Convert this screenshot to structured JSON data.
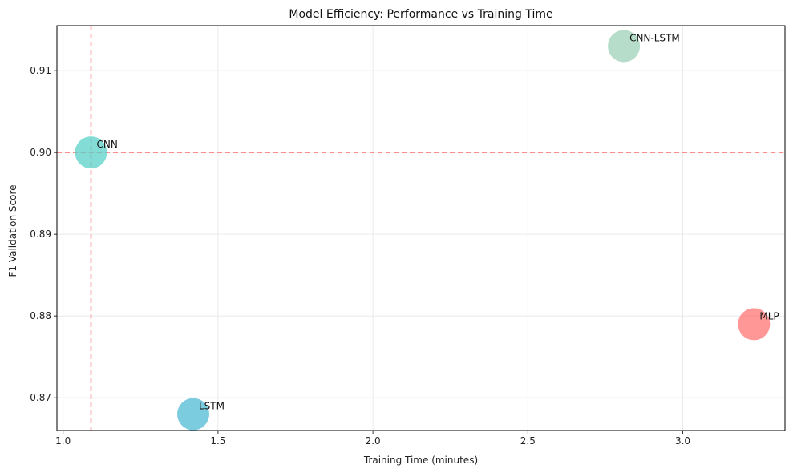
{
  "chart_data": {
    "type": "scatter",
    "title": "Model Efficiency: Performance vs Training Time",
    "xlabel": "Training Time (minutes)",
    "ylabel": "F1 Validation Score",
    "xlim": [
      0.98,
      3.33
    ],
    "ylim": [
      0.866,
      0.9155
    ],
    "xticks": [
      1.0,
      1.5,
      2.0,
      2.5,
      3.0
    ],
    "xtick_labels": [
      "1.0",
      "1.5",
      "2.0",
      "2.5",
      "3.0"
    ],
    "yticks": [
      0.87,
      0.88,
      0.89,
      0.9,
      0.91
    ],
    "ytick_labels": [
      "0.87",
      "0.88",
      "0.89",
      "0.90",
      "0.91"
    ],
    "grid": true,
    "points": [
      {
        "label": "CNN",
        "x": 1.09,
        "y": 0.9,
        "color": "#4ecdc4"
      },
      {
        "label": "LSTM",
        "x": 1.42,
        "y": 0.868,
        "color": "#45b7d1"
      },
      {
        "label": "CNN-LSTM",
        "x": 2.81,
        "y": 0.913,
        "color": "#96ceb4"
      },
      {
        "label": "MLP",
        "x": 3.23,
        "y": 0.879,
        "color": "#ff6b6b"
      }
    ],
    "reference_lines": [
      {
        "orientation": "vertical",
        "x": 1.09,
        "color": "#ff6b6b"
      },
      {
        "orientation": "horizontal",
        "y": 0.9,
        "color": "#ff6b6b"
      }
    ]
  }
}
